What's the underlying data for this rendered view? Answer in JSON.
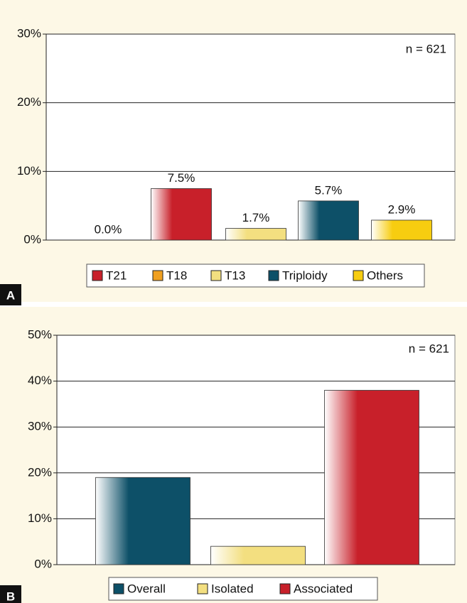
{
  "chart_data": [
    {
      "type": "bar",
      "panel_label": "A",
      "annotation": "n = 621",
      "series": [
        {
          "name": "T21",
          "color": "#c8202a",
          "values": [
            7.5
          ],
          "value_labels": [
            "7.5%"
          ]
        },
        {
          "name": "T18",
          "color": "#f0a020",
          "values": [
            0.0
          ],
          "value_labels": [
            "0.0%"
          ]
        },
        {
          "name": "T13",
          "color": "#f3df80",
          "values": [
            1.7
          ],
          "value_labels": [
            "1.7%"
          ]
        },
        {
          "name": "Triploidy",
          "color": "#0d5068",
          "values": [
            5.7
          ],
          "value_labels": [
            "5.7%"
          ]
        },
        {
          "name": "Others",
          "color": "#f7cd10",
          "values": [
            2.9
          ],
          "value_labels": [
            "2.9%"
          ]
        }
      ],
      "ylim": [
        0,
        30
      ],
      "yticks": [
        {
          "value": 0,
          "label": "0%"
        },
        {
          "value": 10,
          "label": "10%"
        },
        {
          "value": 20,
          "label": "20%"
        },
        {
          "value": 30,
          "label": "30%"
        }
      ],
      "grid": true
    },
    {
      "type": "bar",
      "panel_label": "B",
      "annotation": "n = 621",
      "series": [
        {
          "name": "Overall",
          "color": "#0d5068",
          "values": [
            19
          ]
        },
        {
          "name": "Isolated",
          "color": "#f3df80",
          "values": [
            4
          ]
        },
        {
          "name": "Associated",
          "color": "#c8202a",
          "values": [
            38
          ]
        }
      ],
      "ylim": [
        0,
        50
      ],
      "yticks": [
        {
          "value": 0,
          "label": "0%"
        },
        {
          "value": 10,
          "label": "10%"
        },
        {
          "value": 20,
          "label": "20%"
        },
        {
          "value": 30,
          "label": "30%"
        },
        {
          "value": 40,
          "label": "40%"
        },
        {
          "value": 50,
          "label": "50%"
        }
      ],
      "grid": true
    }
  ]
}
